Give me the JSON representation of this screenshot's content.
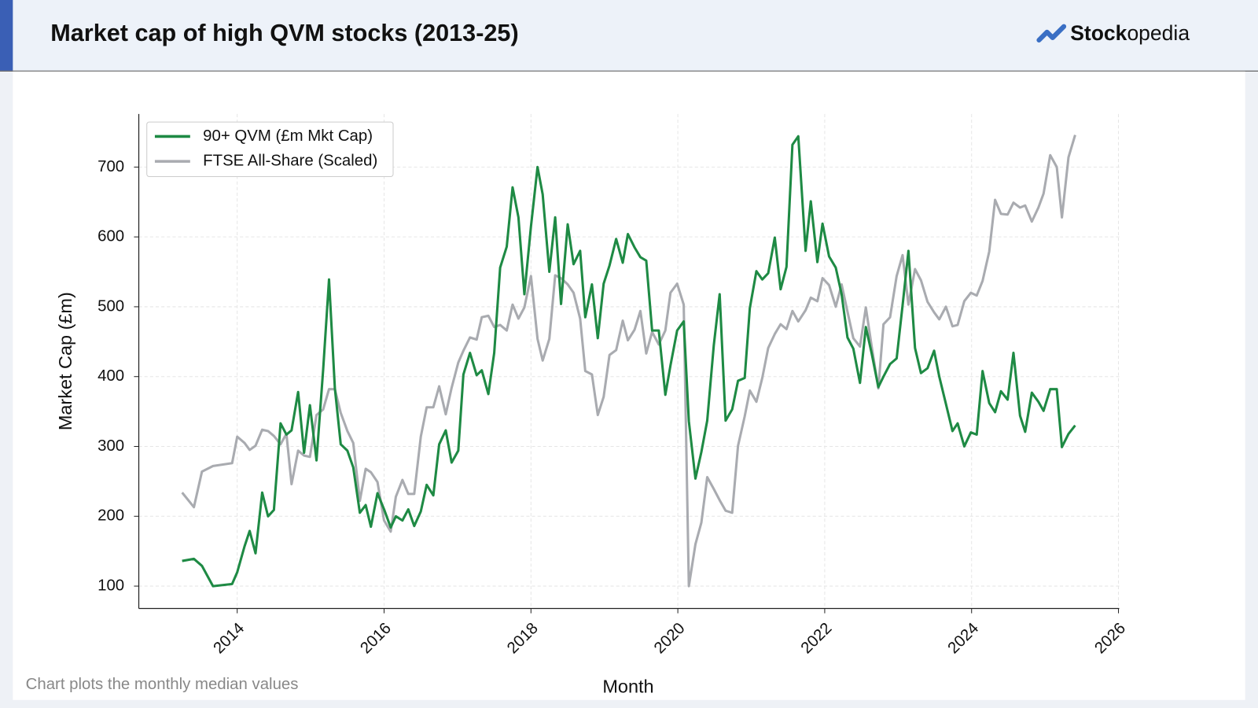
{
  "brand": {
    "bold": "Stock",
    "rest": "opedia"
  },
  "chart_data": {
    "type": "line",
    "title": "Market cap of high QVM stocks (2013-25)",
    "xlabel": "Month",
    "ylabel": "Market Cap (£m)",
    "footnote": "Chart plots the monthly median values",
    "legend": "upper left",
    "grid": true,
    "xlim": [
      2012.66,
      2026.01
    ],
    "ylim": [
      68,
      776
    ],
    "xticks": [
      2014,
      2016,
      2018,
      2020,
      2022,
      2024,
      2026
    ],
    "yticks": [
      100,
      200,
      300,
      400,
      500,
      600,
      700
    ],
    "x": [
      2013.25,
      2013.41,
      2013.52,
      2013.67,
      2013.93,
      2014.0,
      2014.1,
      2014.17,
      2014.25,
      2014.34,
      2014.42,
      2014.5,
      2014.59,
      2014.67,
      2014.74,
      2014.83,
      2014.91,
      2014.99,
      2015.08,
      2015.17,
      2015.25,
      2015.33,
      2015.41,
      2015.5,
      2015.58,
      2015.67,
      2015.75,
      2015.82,
      2015.91,
      2016.0,
      2016.09,
      2016.16,
      2016.25,
      2016.33,
      2016.41,
      2016.5,
      2016.58,
      2016.67,
      2016.75,
      2016.84,
      2016.92,
      2017.01,
      2017.08,
      2017.17,
      2017.26,
      2017.33,
      2017.42,
      2017.5,
      2017.58,
      2017.67,
      2017.75,
      2017.83,
      2017.91,
      2018.0,
      2018.09,
      2018.16,
      2018.25,
      2018.33,
      2018.41,
      2018.5,
      2018.58,
      2018.67,
      2018.74,
      2018.83,
      2018.91,
      2018.99,
      2019.07,
      2019.16,
      2019.25,
      2019.32,
      2019.41,
      2019.49,
      2019.57,
      2019.65,
      2019.74,
      2019.83,
      2019.9,
      2019.99,
      2020.08,
      2020.15,
      2020.24,
      2020.32,
      2020.4,
      2020.49,
      2020.57,
      2020.65,
      2020.74,
      2020.82,
      2020.91,
      2020.98,
      2021.07,
      2021.15,
      2021.23,
      2021.32,
      2021.4,
      2021.48,
      2021.56,
      2021.64,
      2021.74,
      2021.81,
      2021.9,
      2021.97,
      2022.06,
      2022.15,
      2022.23,
      2022.31,
      2022.39,
      2022.48,
      2022.56,
      2022.64,
      2022.73,
      2022.8,
      2022.89,
      2022.98,
      2023.06,
      2023.14,
      2023.23,
      2023.31,
      2023.4,
      2023.49,
      2023.56,
      2023.65,
      2023.74,
      2023.81,
      2023.9,
      2023.99,
      2024.07,
      2024.15,
      2024.24,
      2024.32,
      2024.4,
      2024.49,
      2024.57,
      2024.66,
      2024.73,
      2024.82,
      2024.91,
      2024.98,
      2025.07,
      2025.16,
      2025.23,
      2025.32,
      2025.41
    ],
    "series": [
      {
        "name": "90+ QVM (£m Mkt Cap)",
        "color": "#1e8a44",
        "values": [
          136,
          139,
          129,
          100,
          103,
          120,
          157,
          179,
          147,
          234,
          200,
          209,
          333,
          317,
          323,
          378,
          291,
          359,
          280,
          410,
          539,
          383,
          303,
          294,
          270,
          205,
          216,
          185,
          233,
          210,
          184,
          200,
          194,
          210,
          186,
          207,
          245,
          230,
          303,
          323,
          277,
          294,
          403,
          434,
          402,
          409,
          375,
          434,
          556,
          586,
          671,
          628,
          518,
          615,
          700,
          661,
          550,
          628,
          504,
          618,
          561,
          580,
          485,
          532,
          455,
          533,
          559,
          597,
          563,
          604,
          585,
          571,
          566,
          466,
          466,
          374,
          416,
          466,
          479,
          336,
          254,
          292,
          337,
          445,
          518,
          337,
          353,
          394,
          398,
          498,
          551,
          539,
          548,
          599,
          525,
          557,
          732,
          744,
          580,
          651,
          564,
          619,
          572,
          556,
          518,
          456,
          440,
          391,
          471,
          433,
          385,
          400,
          418,
          426,
          502,
          580,
          441,
          405,
          412,
          437,
          400,
          361,
          322,
          333,
          300,
          320,
          317,
          408,
          362,
          349,
          379,
          367,
          434,
          344,
          321,
          377,
          364,
          351,
          382,
          382,
          299,
          318,
          330
        ]
      },
      {
        "name": "FTSE All-Share (Scaled)",
        "color": "#a9abb0",
        "values": [
          234,
          213,
          264,
          272,
          276,
          314,
          305,
          295,
          301,
          324,
          322,
          315,
          303,
          318,
          246,
          294,
          287,
          285,
          345,
          353,
          382,
          382,
          348,
          322,
          305,
          222,
          268,
          263,
          249,
          194,
          178,
          228,
          252,
          232,
          232,
          314,
          356,
          356,
          386,
          346,
          384,
          420,
          437,
          456,
          453,
          485,
          487,
          471,
          474,
          466,
          503,
          483,
          499,
          544,
          454,
          423,
          454,
          545,
          541,
          532,
          520,
          483,
          408,
          403,
          345,
          371,
          431,
          438,
          480,
          452,
          467,
          494,
          433,
          464,
          446,
          466,
          520,
          533,
          503,
          100,
          160,
          191,
          256,
          239,
          223,
          208,
          205,
          301,
          343,
          380,
          364,
          398,
          441,
          461,
          475,
          468,
          494,
          479,
          495,
          513,
          508,
          541,
          531,
          500,
          532,
          493,
          455,
          443,
          499,
          443,
          383,
          475,
          485,
          544,
          574,
          503,
          554,
          538,
          507,
          492,
          482,
          500,
          472,
          474,
          508,
          520,
          516,
          537,
          579,
          653,
          633,
          632,
          649,
          642,
          645,
          622,
          642,
          662,
          717,
          700,
          628,
          714,
          746
        ]
      }
    ]
  }
}
